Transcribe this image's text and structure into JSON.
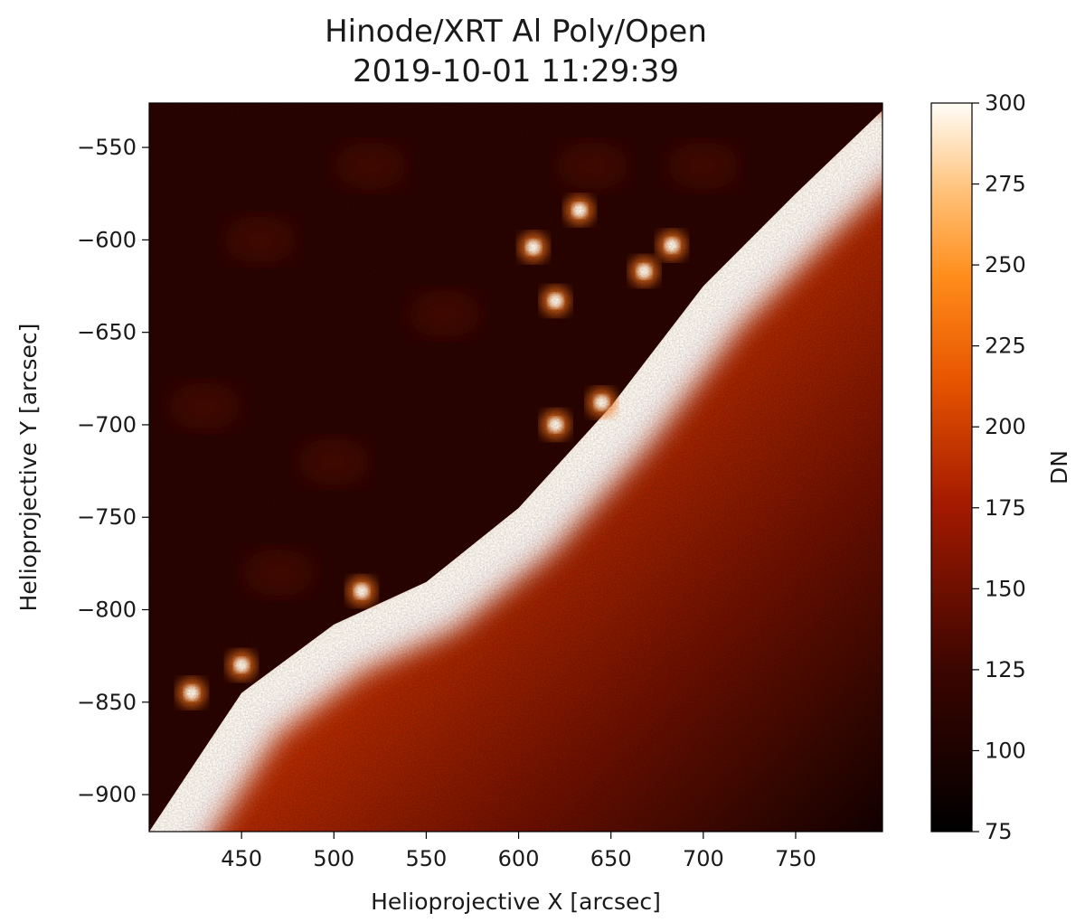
{
  "chart_data": {
    "type": "heatmap",
    "title_line1": "Hinode/XRT Al Poly/Open",
    "title_line2": "2019-10-01 11:29:39",
    "xlabel": "Helioprojective X [arcsec]",
    "ylabel": "Helioprojective Y [arcsec]",
    "xlim": [
      400,
      797
    ],
    "ylim": [
      -920,
      -526
    ],
    "x_ticks": [
      450,
      500,
      550,
      600,
      650,
      700,
      750
    ],
    "y_ticks": [
      -550,
      -600,
      -650,
      -700,
      -750,
      -800,
      -850,
      -900
    ],
    "colorbar": {
      "label": "DN",
      "range": [
        75,
        300
      ],
      "ticks": [
        300,
        275,
        250,
        225,
        200,
        175,
        150,
        125,
        100,
        75
      ],
      "colormap": "hinodexrt (black-red-orange-white)"
    },
    "features": {
      "limb_points": [
        [
          400,
          -920
        ],
        [
          450,
          -845
        ],
        [
          500,
          -808
        ],
        [
          550,
          -785
        ],
        [
          600,
          -745
        ],
        [
          650,
          -690
        ],
        [
          700,
          -625
        ],
        [
          750,
          -575
        ],
        [
          797,
          -530
        ]
      ],
      "bright_points": [
        {
          "x": 423,
          "y": -845
        },
        {
          "x": 450,
          "y": -830
        },
        {
          "x": 515,
          "y": -790
        },
        {
          "x": 620,
          "y": -700
        },
        {
          "x": 645,
          "y": -688
        },
        {
          "x": 620,
          "y": -633
        },
        {
          "x": 608,
          "y": -604
        },
        {
          "x": 633,
          "y": -584
        },
        {
          "x": 668,
          "y": -617
        },
        {
          "x": 683,
          "y": -603
        }
      ]
    }
  }
}
